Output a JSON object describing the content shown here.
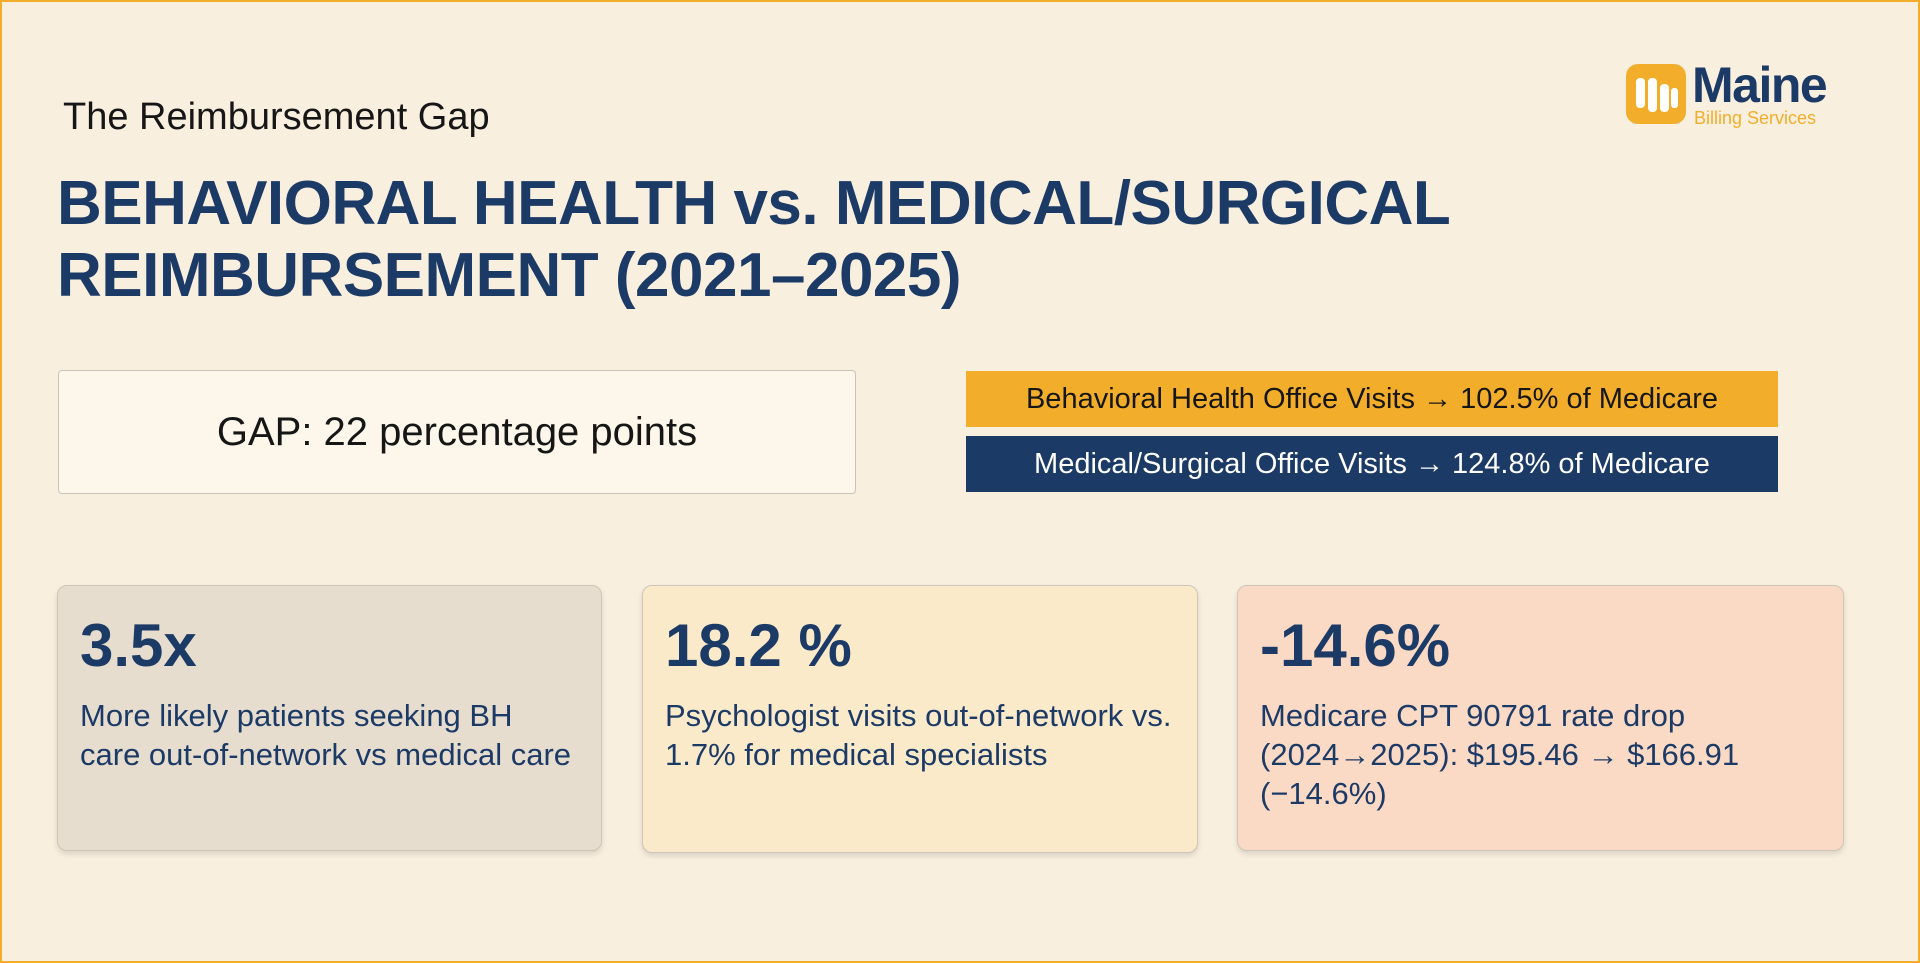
{
  "header": {
    "eyebrow": "The Reimbursement Gap",
    "title": "BEHAVIORAL HEALTH vs. MEDICAL/SURGICAL REIMBURSEMENT (2021–2025)"
  },
  "logo": {
    "name": "Maine",
    "subtitle": "Billing Services",
    "icon": "maine-billing-logo-icon"
  },
  "gap": {
    "label": "GAP: 22 percentage points"
  },
  "comparison": {
    "behavioral": "Behavioral Health Office Visits → 102.5% of Medicare",
    "medical": "Medical/Surgical Office Visits → 124.8% of Medicare"
  },
  "stats": [
    {
      "value": "3.5x",
      "text": "More likely patients seeking BH care out-of-network vs medical care"
    },
    {
      "value": "18.2 %",
      "text": "Psychologist visits out-of-network vs. 1.7% for medical specialists"
    },
    {
      "value": "-14.6%",
      "text": "Medicare CPT 90791 rate drop (2024→2025): $195.46 → $166.91 (−14.6%)"
    }
  ],
  "colors": {
    "background": "#f9efdf",
    "accent": "#f2ae2a",
    "navy": "#1c3a66"
  }
}
